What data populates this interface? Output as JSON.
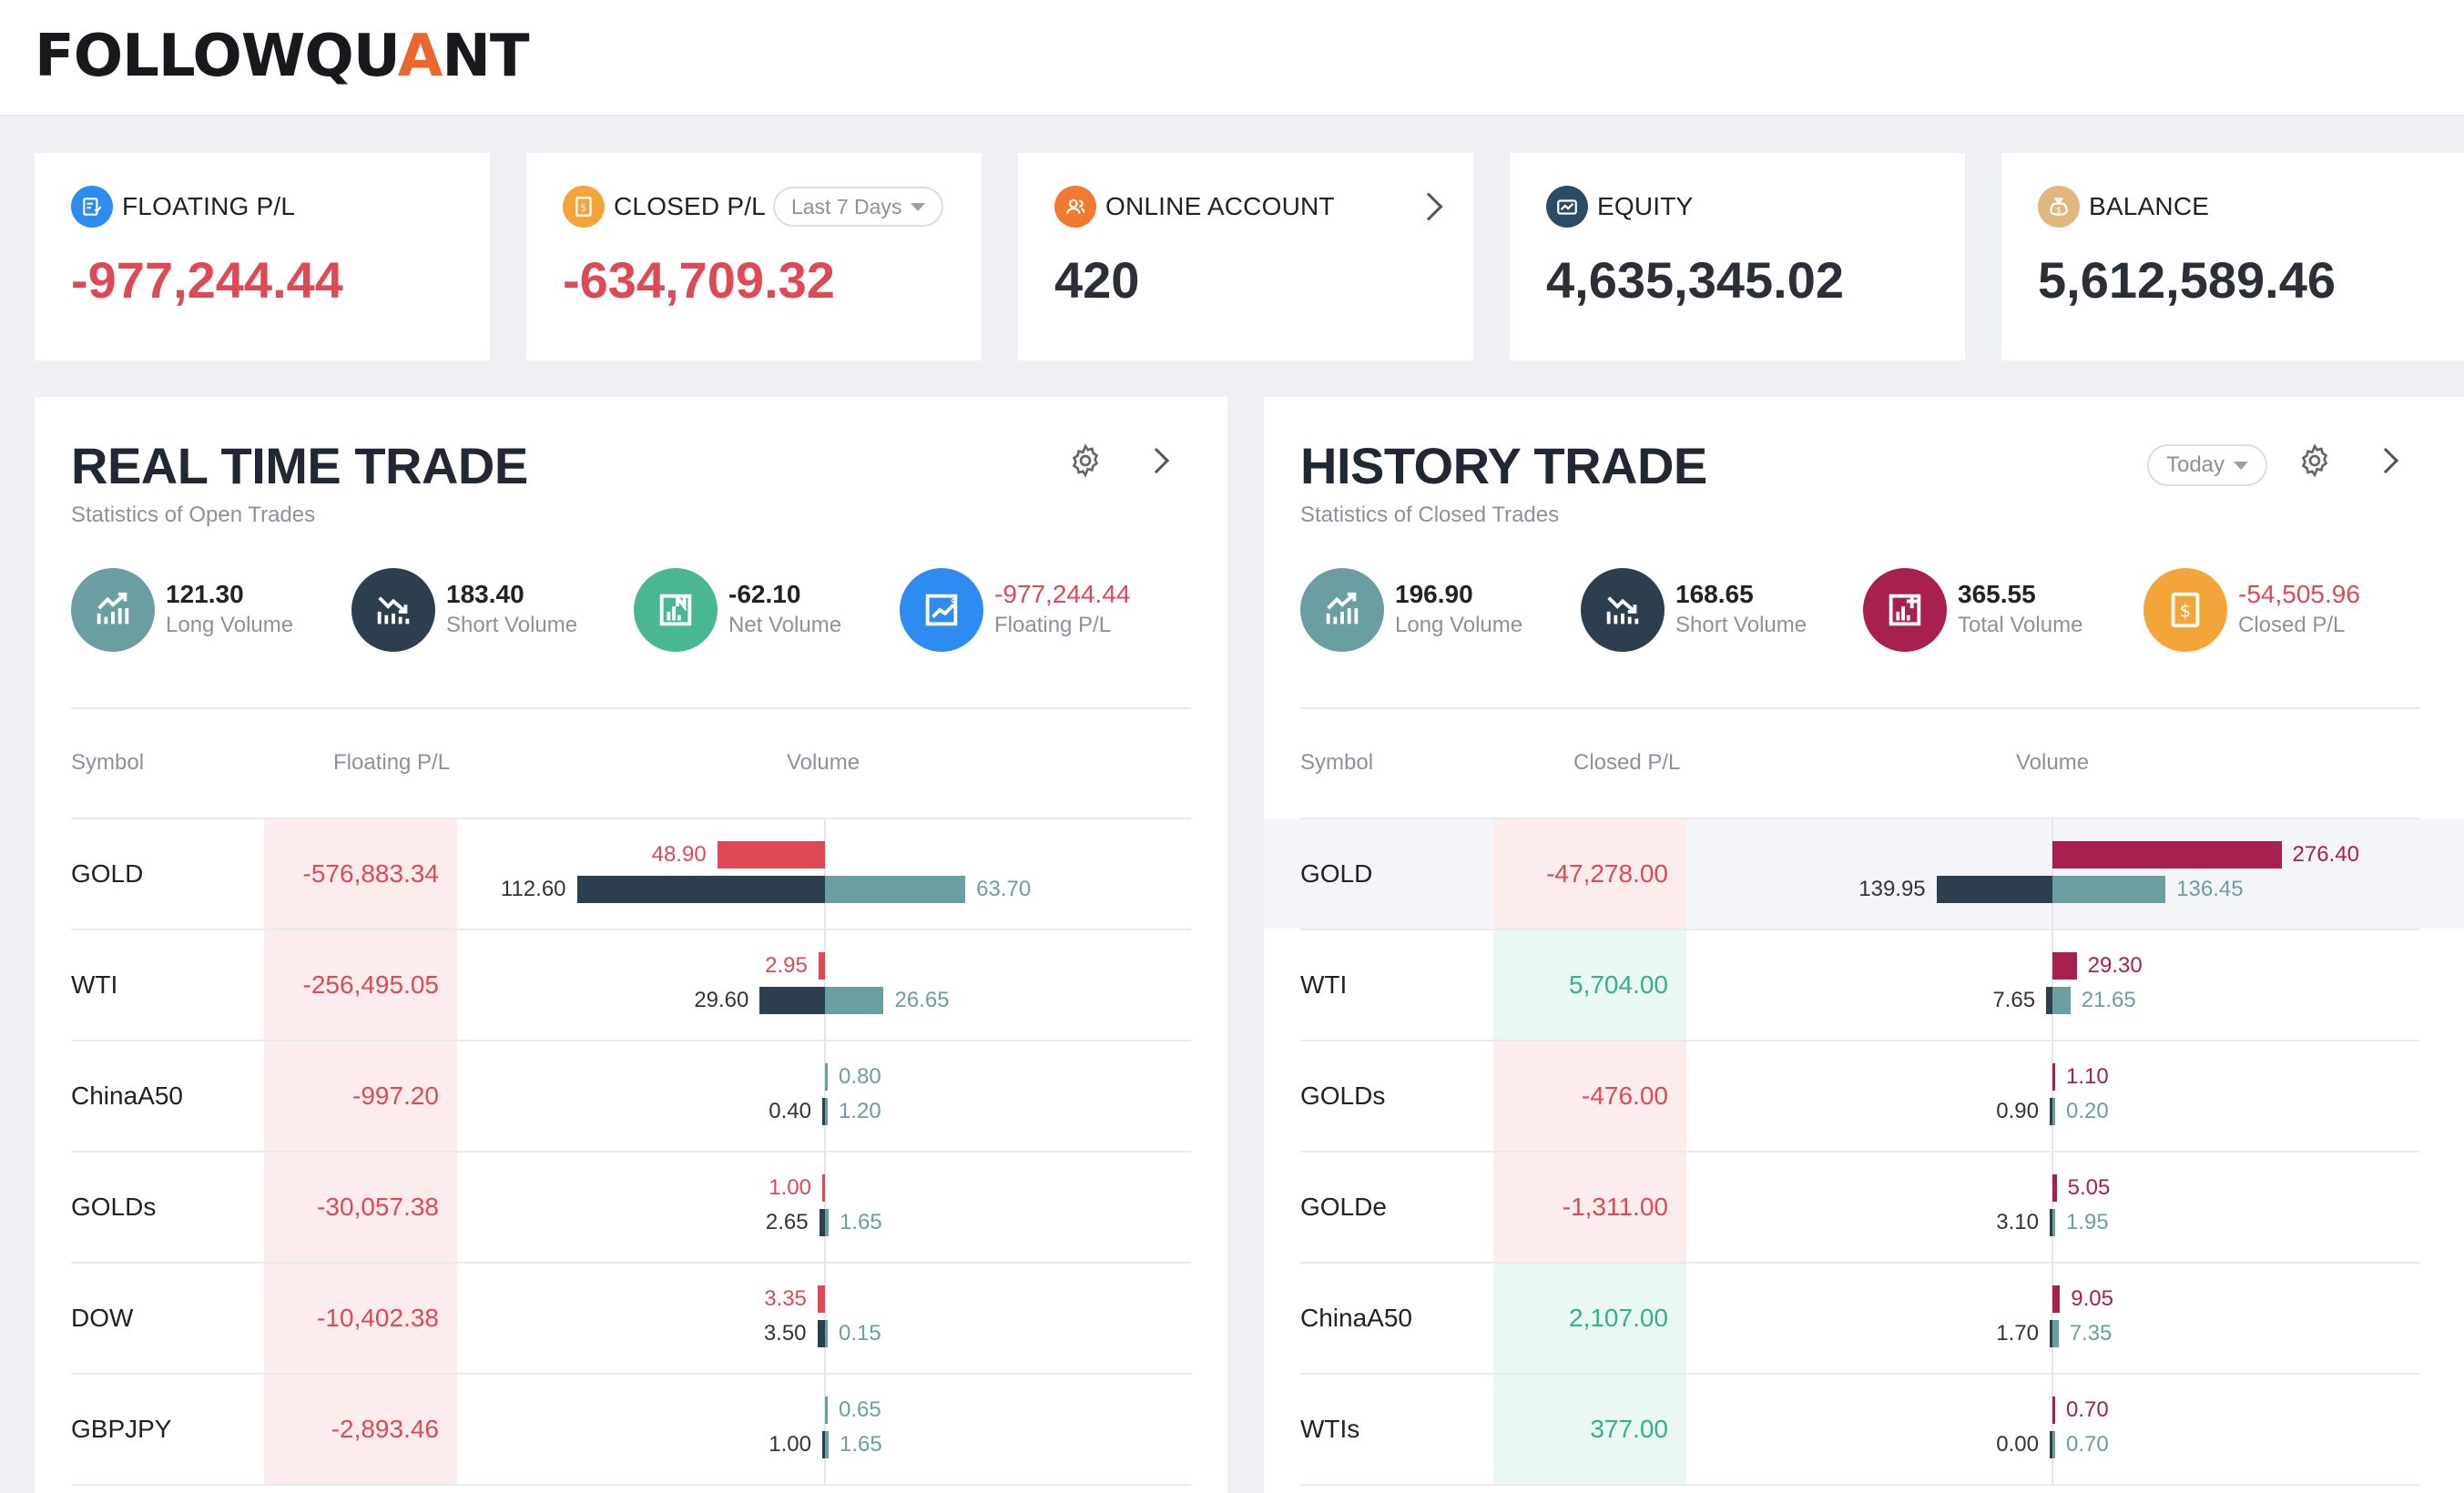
{
  "brand": {
    "name_start": "FOLLOWQU",
    "name_accent": "A",
    "name_end": "NT"
  },
  "colors": {
    "negative": "#dd4a55",
    "positive": "#36b187",
    "long": "#6b9ea0",
    "short": "#2d3e4e",
    "history_up": "#a8204f"
  },
  "cards": [
    {
      "label": "FLOATING P/L",
      "value": "-977,244.44",
      "negative": true,
      "icon": "report-icon",
      "icon_color": "#2e8cf0"
    },
    {
      "label": "CLOSED P/L",
      "value": "-634,709.32",
      "negative": true,
      "icon": "receipt-icon",
      "icon_color": "#f3a53a",
      "dropdown": "Last 7 Days"
    },
    {
      "label": "ONLINE ACCOUNT",
      "value": "420",
      "negative": false,
      "icon": "users-icon",
      "icon_color": "#f07a2e"
    },
    {
      "label": "EQUITY",
      "value": "4,635,345.02",
      "negative": false,
      "icon": "wallet-chart-icon",
      "icon_color": "#2d4c63"
    },
    {
      "label": "BALANCE",
      "value": "5,612,589.46",
      "negative": false,
      "icon": "money-bag-icon",
      "icon_color": "#e0b77e"
    }
  ],
  "realtime": {
    "title": "REAL TIME TRADE",
    "subtitle": "Statistics of Open Trades",
    "metrics": [
      {
        "value": "121.30",
        "label": "Long Volume",
        "icon": "trend-up-icon",
        "color": "#6b9ea0",
        "negative": false
      },
      {
        "value": "183.40",
        "label": "Short Volume",
        "icon": "trend-down-icon",
        "color": "#2d3e4e",
        "negative": false
      },
      {
        "value": "-62.10",
        "label": "Net Volume",
        "icon": "net-chart-icon",
        "color": "#49b892",
        "negative": false
      },
      {
        "value": "-977,244.44",
        "label": "Floating P/L",
        "icon": "dollar-chart-icon",
        "color": "#2e8cf0",
        "negative": true
      }
    ],
    "columns": {
      "symbol": "Symbol",
      "pl": "Floating P/L",
      "volume": "Volume"
    },
    "rows": [
      {
        "symbol": "GOLD",
        "pl": "-576,883.34",
        "pl_positive": false,
        "net": 48.9,
        "net_label": "48.90",
        "net_positive": false,
        "short": 112.6,
        "short_label": "112.60",
        "long": 63.7,
        "long_label": "63.70"
      },
      {
        "symbol": "WTI",
        "pl": "-256,495.05",
        "pl_positive": false,
        "net": 2.95,
        "net_label": "2.95",
        "net_positive": false,
        "short": 29.6,
        "short_label": "29.60",
        "long": 26.65,
        "long_label": "26.65"
      },
      {
        "symbol": "ChinaA50",
        "pl": "-997.20",
        "pl_positive": false,
        "net": 0.8,
        "net_label": "0.80",
        "net_positive": true,
        "short": 0.4,
        "short_label": "0.40",
        "long": 1.2,
        "long_label": "1.20"
      },
      {
        "symbol": "GOLDs",
        "pl": "-30,057.38",
        "pl_positive": false,
        "net": 1.0,
        "net_label": "1.00",
        "net_positive": false,
        "short": 2.65,
        "short_label": "2.65",
        "long": 1.65,
        "long_label": "1.65"
      },
      {
        "symbol": "DOW",
        "pl": "-10,402.38",
        "pl_positive": false,
        "net": 3.35,
        "net_label": "3.35",
        "net_positive": false,
        "short": 3.5,
        "short_label": "3.50",
        "long": 0.15,
        "long_label": "0.15"
      },
      {
        "symbol": "GBPJPY",
        "pl": "-2,893.46",
        "pl_positive": false,
        "net": 0.65,
        "net_label": "0.65",
        "net_positive": true,
        "short": 1.0,
        "short_label": "1.00",
        "long": 1.65,
        "long_label": "1.65"
      }
    ]
  },
  "history": {
    "title": "HISTORY TRADE",
    "subtitle": "Statistics of Closed Trades",
    "dropdown": "Today",
    "metrics": [
      {
        "value": "196.90",
        "label": "Long Volume",
        "icon": "trend-up-icon",
        "color": "#6b9ea0",
        "negative": false
      },
      {
        "value": "168.65",
        "label": "Short Volume",
        "icon": "trend-down-icon",
        "color": "#2d3e4e",
        "negative": false
      },
      {
        "value": "365.55",
        "label": "Total Volume",
        "icon": "total-chart-icon",
        "color": "#a8204f",
        "negative": false
      },
      {
        "value": "-54,505.96",
        "label": "Closed P/L",
        "icon": "receipt-icon",
        "color": "#f3a53a",
        "negative": true
      }
    ],
    "columns": {
      "symbol": "Symbol",
      "pl": "Closed P/L",
      "volume": "Volume"
    },
    "rows": [
      {
        "symbol": "GOLD",
        "pl": "-47,278.00",
        "pl_positive": false,
        "total": 276.4,
        "total_label": "276.40",
        "short": 139.95,
        "short_label": "139.95",
        "long": 136.45,
        "long_label": "136.45",
        "highlight": true
      },
      {
        "symbol": "WTI",
        "pl": "5,704.00",
        "pl_positive": true,
        "total": 29.3,
        "total_label": "29.30",
        "short": 7.65,
        "short_label": "7.65",
        "long": 21.65,
        "long_label": "21.65"
      },
      {
        "symbol": "GOLDs",
        "pl": "-476.00",
        "pl_positive": false,
        "total": 1.1,
        "total_label": "1.10",
        "short": 0.9,
        "short_label": "0.90",
        "long": 0.2,
        "long_label": "0.20"
      },
      {
        "symbol": "GOLDe",
        "pl": "-1,311.00",
        "pl_positive": false,
        "total": 5.05,
        "total_label": "5.05",
        "short": 3.1,
        "short_label": "3.10",
        "long": 1.95,
        "long_label": "1.95"
      },
      {
        "symbol": "ChinaA50",
        "pl": "2,107.00",
        "pl_positive": true,
        "total": 9.05,
        "total_label": "9.05",
        "short": 1.7,
        "short_label": "1.70",
        "long": 7.35,
        "long_label": "7.35"
      },
      {
        "symbol": "WTIs",
        "pl": "377.00",
        "pl_positive": true,
        "total": 0.7,
        "total_label": "0.70",
        "short": 0.0,
        "short_label": "0.00",
        "long": 0.7,
        "long_label": "0.70"
      }
    ]
  }
}
